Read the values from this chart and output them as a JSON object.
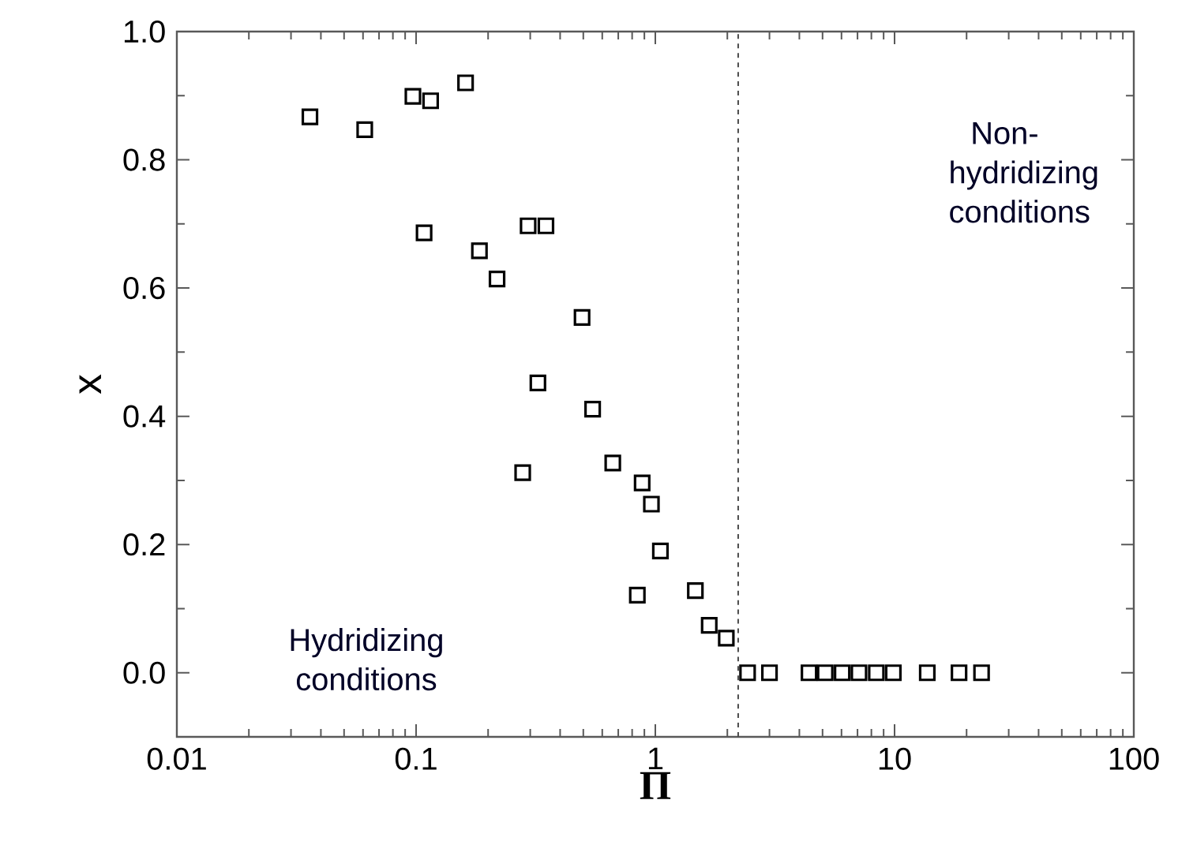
{
  "chart_data": {
    "type": "scatter",
    "xlabel": "Π",
    "ylabel": "x",
    "log": "x",
    "marker": "square",
    "grid": false,
    "xlim": [
      0.01,
      100
    ],
    "ylim": [
      -0.1,
      1.0
    ],
    "xticks": [
      0.01,
      0.1,
      1,
      10,
      100
    ],
    "yticks": [
      {
        "value": 0,
        "label": "0.0"
      },
      {
        "value": 0.2,
        "label": "0.2"
      },
      {
        "value": 0.4,
        "label": "0.4"
      },
      {
        "value": 0.6,
        "label": "0.6"
      },
      {
        "value": 0.8,
        "label": "0.8"
      },
      {
        "value": 1.0,
        "label": "1.0"
      }
    ],
    "series": [
      {
        "color": "#000000",
        "x": [
          0.036,
          0.061,
          0.097,
          0.115,
          0.161,
          0.108,
          0.184,
          0.218,
          0.294,
          0.349,
          0.494,
          0.323,
          0.547,
          0.279,
          0.664,
          0.881,
          0.963,
          1.05,
          0.841,
          1.47,
          1.68,
          1.98,
          2.43,
          3.0,
          4.39,
          5.13,
          6.04,
          7.1,
          8.39,
          9.88,
          13.7,
          18.6,
          23.1
        ],
        "values": [
          0.867,
          0.847,
          0.899,
          0.892,
          0.92,
          0.686,
          0.658,
          0.614,
          0.697,
          0.697,
          0.554,
          0.452,
          0.411,
          0.312,
          0.327,
          0.296,
          0.263,
          0.19,
          0.121,
          0.128,
          0.074,
          0.054,
          0,
          0,
          0,
          0,
          0,
          0,
          0,
          0,
          0,
          0,
          0
        ]
      }
    ],
    "ref_lines": [
      {
        "axis": "x",
        "value": 2.22,
        "line_style": "dashed"
      }
    ],
    "annotations": [
      "Non-hydridizing conditions",
      "Hydridizing conditions"
    ]
  }
}
